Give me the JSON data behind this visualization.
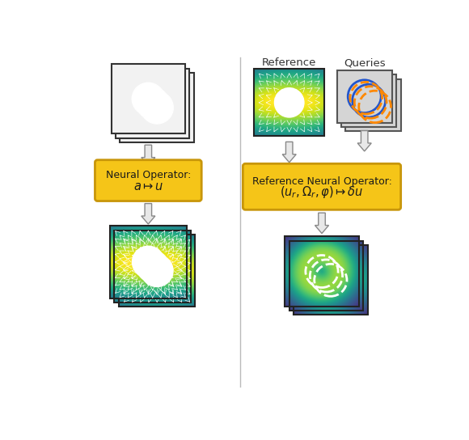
{
  "bg_color": "#ffffff",
  "box_fill_color": "#f5c518",
  "box_edge_color": "#c8960a",
  "box_text_color": "#1a1a1a",
  "divider_color": "#bbbbbb",
  "arrow_face_color": "#e8e8e8",
  "arrow_edge_color": "#888888",
  "label_left_box_line1": "Neural Operator:",
  "label_left_box_line2": "$a \\mapsto u$",
  "label_right_box_line1": "Reference Neural Operator:",
  "label_right_box_line2": "$(u_r, \\Omega_r, \\varphi) \\mapsto \\delta u$",
  "ref_label": "Reference",
  "queries_label": "Queries"
}
